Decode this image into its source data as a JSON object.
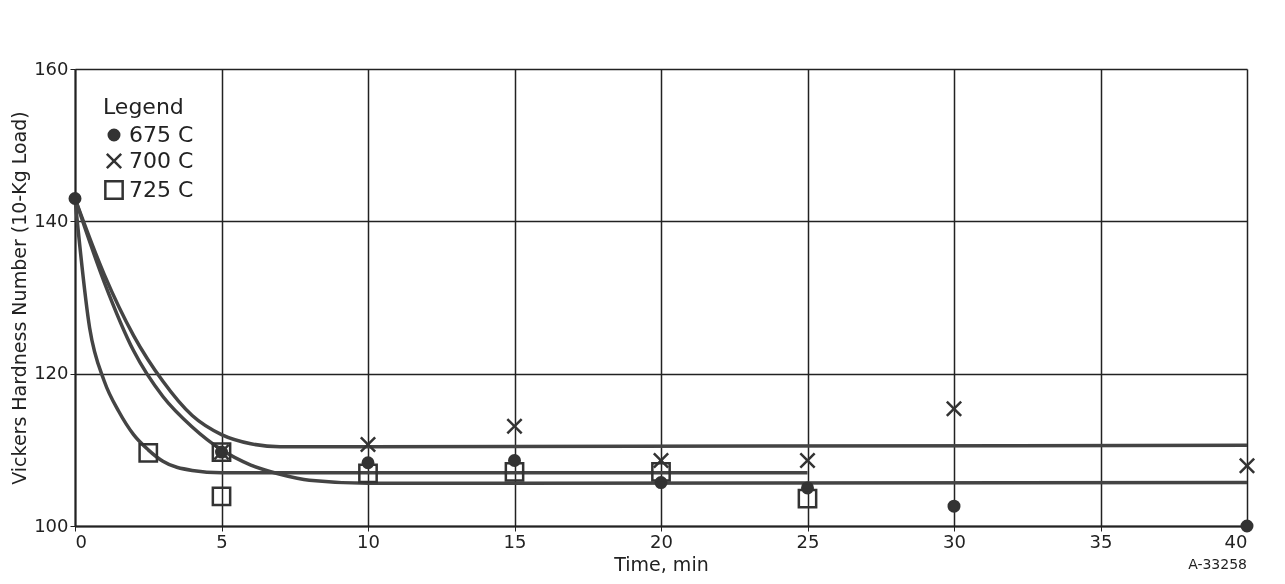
{
  "chart_data": {
    "type": "scatter",
    "xlabel": "Time, min",
    "ylabel": "Vickers Hardness Number (10-Kg Load)",
    "legend_title": "Legend",
    "xlim": [
      0,
      40
    ],
    "ylim": [
      100,
      160
    ],
    "xticks": [
      0,
      5,
      10,
      15,
      20,
      25,
      30,
      35,
      40
    ],
    "yticks": [
      100,
      120,
      140,
      160
    ],
    "grid": true,
    "legend": "top left",
    "annotations": [
      "A-33258"
    ],
    "series": [
      {
        "name": "675 C",
        "color": "#333333",
        "marker": "circle",
        "x": [
          0,
          5,
          10,
          15,
          20,
          25,
          30,
          40
        ],
        "values": [
          143,
          109.7,
          108.3,
          108.6,
          105.7,
          105,
          102.6,
          100
        ]
      },
      {
        "name": "700 C",
        "color": "#333333",
        "marker": "cross",
        "x": [
          5,
          10,
          15,
          20,
          25,
          30,
          40
        ],
        "values": [
          109.7,
          110.7,
          113.1,
          108.6,
          108.6,
          115.4,
          107.9
        ]
      },
      {
        "name": "725 C",
        "color": "#333333",
        "marker": "square",
        "x": [
          2.5,
          5,
          5,
          10,
          15,
          20,
          25
        ],
        "values": [
          109.6,
          109.7,
          103.9,
          106.9,
          107.1,
          107.1,
          103.6
        ]
      },
      {
        "type": "line",
        "color": "#444444",
        "marker": "none",
        "x": [
          0,
          1,
          2,
          3,
          4,
          5,
          6,
          7,
          10,
          40
        ],
        "values": [
          143,
          133,
          125,
          119,
          114.5,
          112,
          110.8,
          110.4,
          110.4,
          110.6
        ]
      },
      {
        "type": "line",
        "color": "#444444",
        "marker": "none",
        "x": [
          0,
          0.5,
          1,
          1.5,
          2,
          2.5,
          3,
          4,
          5,
          25
        ],
        "values": [
          143,
          126,
          119,
          115,
          112,
          110,
          108.5,
          107.3,
          107,
          107
        ]
      },
      {
        "type": "line",
        "color": "#444444",
        "marker": "none",
        "x": [
          0,
          1,
          2,
          3,
          4,
          5,
          6,
          7,
          8,
          10,
          40
        ],
        "values": [
          143,
          132,
          123,
          117,
          113,
          110,
          108,
          106.8,
          106,
          105.6,
          105.7
        ]
      }
    ]
  }
}
